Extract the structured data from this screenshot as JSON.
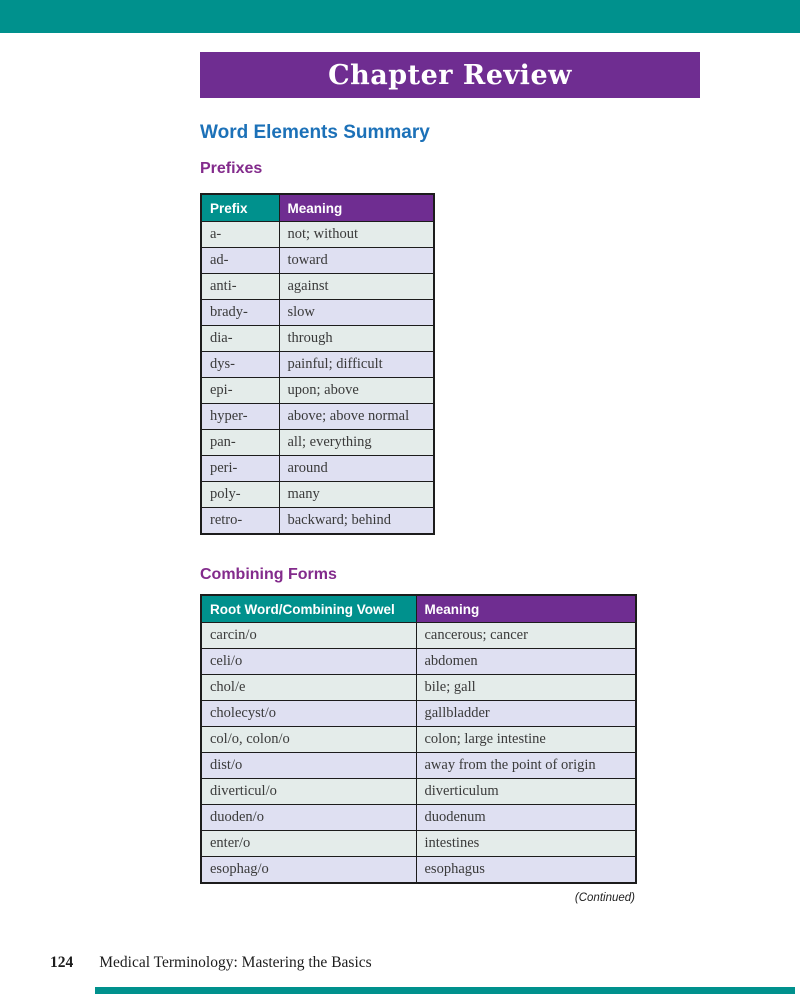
{
  "banner": {
    "title": "Chapter Review"
  },
  "section_title": "Word Elements Summary",
  "prefixes_table": {
    "heading": "Prefixes",
    "columns": [
      "Prefix",
      "Meaning"
    ],
    "rows": [
      [
        "a-",
        "not; without"
      ],
      [
        "ad-",
        "toward"
      ],
      [
        "anti-",
        "against"
      ],
      [
        "brady-",
        "slow"
      ],
      [
        "dia-",
        "through"
      ],
      [
        "dys-",
        "painful; difficult"
      ],
      [
        "epi-",
        "upon; above"
      ],
      [
        "hyper-",
        "above; above normal"
      ],
      [
        "pan-",
        "all; everything"
      ],
      [
        "peri-",
        "around"
      ],
      [
        "poly-",
        "many"
      ],
      [
        "retro-",
        "backward; behind"
      ]
    ]
  },
  "combining_forms_table": {
    "heading": "Combining Forms",
    "columns": [
      "Root Word/Combining Vowel",
      "Meaning"
    ],
    "rows": [
      [
        "carcin/o",
        "cancerous; cancer"
      ],
      [
        "celi/o",
        "abdomen"
      ],
      [
        "chol/e",
        "bile; gall"
      ],
      [
        "cholecyst/o",
        "gallbladder"
      ],
      [
        "col/o, colon/o",
        "colon; large intestine"
      ],
      [
        "dist/o",
        "away from the point of origin"
      ],
      [
        "diverticul/o",
        "diverticulum"
      ],
      [
        "duoden/o",
        "duodenum"
      ],
      [
        "enter/o",
        "intestines"
      ],
      [
        "esophag/o",
        "esophagus"
      ]
    ]
  },
  "continued_note": "(Continued)",
  "footer": {
    "page_number": "124",
    "book_title": "Medical Terminology: Mastering the Basics"
  },
  "colors": {
    "teal_accent": "#00918D",
    "purple_accent": "#6F2D91",
    "heading_blue": "#1C71B8",
    "heading_purple": "#832B8C",
    "row_green": "#E4ECEA",
    "row_lavender": "#DFE0F2"
  }
}
